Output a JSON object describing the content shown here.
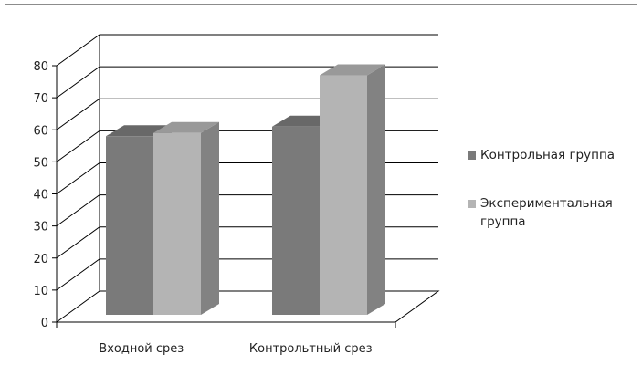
{
  "chart_data": {
    "type": "bar",
    "categories": [
      "Входной срез",
      "Контрольтный срез"
    ],
    "series": [
      {
        "name": "Контрольная группа",
        "values": [
          58,
          61
        ],
        "color": "#7a7a7a"
      },
      {
        "name": "Экспериментальная группа",
        "values": [
          59,
          77
        ],
        "color": "#b4b4b4"
      }
    ],
    "ylim": [
      0,
      80
    ],
    "yticks": [
      "0",
      "10",
      "20",
      "30",
      "40",
      "50",
      "60",
      "70",
      "80"
    ],
    "grid": true,
    "style": "3d-column",
    "legend_position": "right"
  }
}
